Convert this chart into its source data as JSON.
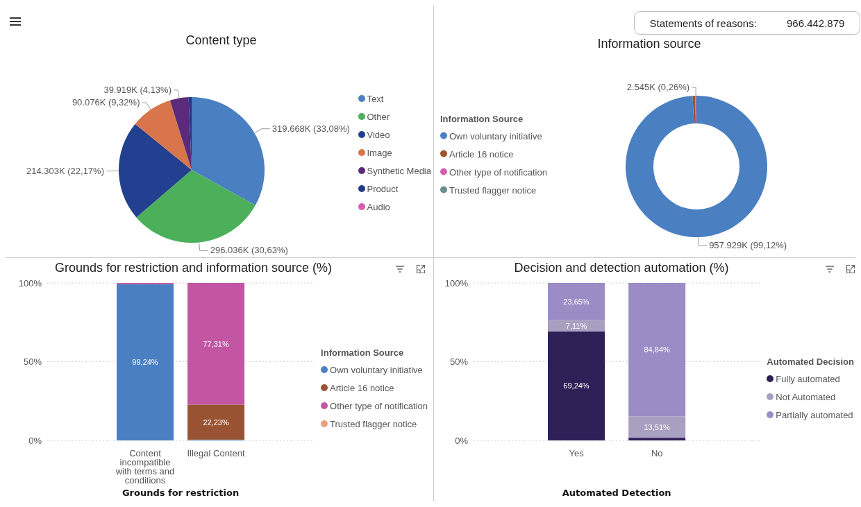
{
  "chart_data": [
    {
      "type": "pie",
      "title": "Content type",
      "categories": [
        "Text",
        "Other",
        "Video",
        "Image",
        "Synthetic Media",
        "Product",
        "Audio"
      ],
      "values": [
        33.08,
        30.63,
        22.17,
        9.32,
        4.13,
        0.67,
        null
      ],
      "colors": [
        "#4a7fc1",
        "#4cb05a",
        "#233f8f",
        "#d9754a",
        "#5b2a7a",
        "#1f3a8a",
        "#d45fae"
      ],
      "value_labels": [
        "319.668K (33,08%)",
        "296.036K (30,63%)",
        "214.303K (22,17%)",
        "90.076K (9,32%)",
        "39.919K (4,13%)",
        null,
        null
      ],
      "legend": "right"
    },
    {
      "type": "other",
      "title": "Statements of reasons:",
      "annotations": [
        "966.442.879"
      ]
    },
    {
      "type": "donut",
      "title": "Information source",
      "legend_title": "Information Source",
      "categories": [
        "Own voluntary initiative",
        "Article 16 notice",
        "Other type of notification",
        "Trusted flagger notice"
      ],
      "values": [
        99.12,
        0.62,
        0.26,
        null
      ],
      "colors": [
        "#4a7fc1",
        "#a0522d",
        "#d060b0",
        "#6b8e8e"
      ],
      "value_labels": [
        "957.929K (99,12%)",
        null,
        "2.545K (0,26%)",
        null
      ],
      "legend": "left"
    },
    {
      "type": "bar",
      "title": "Grounds for restriction and information source (%)",
      "xlabel": "Grounds for restriction",
      "legend_title": "Information Source",
      "categories": [
        "Content incompatible with terms and conditions",
        "Illegal Content"
      ],
      "stacked": true,
      "ylim": [
        0,
        100
      ],
      "yticks": [
        {
          "value": 0,
          "label": "0%"
        },
        {
          "value": 50,
          "label": "50%"
        },
        {
          "value": 100,
          "label": "100%"
        }
      ],
      "grid": "y",
      "legend": "right",
      "series": [
        {
          "name": "Own voluntary initiative",
          "color": "#4a7fc1",
          "values": [
            99.24,
            0.5
          ],
          "value_labels": [
            "99,24%",
            null
          ]
        },
        {
          "name": "Article 16 notice",
          "color": "#9a5332",
          "values": [
            0,
            22.23
          ],
          "value_labels": [
            null,
            "22,23%"
          ]
        },
        {
          "name": "Other type of notification",
          "color": "#c256a3",
          "values": [
            0.8,
            77.31
          ],
          "value_labels": [
            null,
            "77,31%"
          ]
        },
        {
          "name": "Trusted flagger notice",
          "color": "#e8a082",
          "values": [
            0,
            0
          ],
          "value_labels": [
            null,
            null
          ]
        }
      ]
    },
    {
      "type": "bar",
      "title": "Decision and detection automation (%)",
      "xlabel": "Automated Detection",
      "legend_title": "Automated Decision",
      "categories": [
        "Yes",
        "No"
      ],
      "stacked": true,
      "ylim": [
        0,
        100
      ],
      "yticks": [
        {
          "value": 0,
          "label": "0%"
        },
        {
          "value": 50,
          "label": "50%"
        },
        {
          "value": 100,
          "label": "100%"
        }
      ],
      "grid": "y",
      "legend": "right",
      "series": [
        {
          "name": "Fully automated",
          "color": "#2f1f57",
          "values": [
            69.24,
            1.7
          ],
          "value_labels": [
            "69,24%",
            null
          ]
        },
        {
          "name": "Not Automated",
          "color": "#a7a0c0",
          "values": [
            7.11,
            13.51
          ],
          "value_labels": [
            "7,11%",
            "13,51%"
          ]
        },
        {
          "name": "Partially automated",
          "color": "#9b8cc6",
          "values": [
            23.65,
            84.84
          ],
          "value_labels": [
            "23,65%",
            "84,84%"
          ]
        }
      ]
    }
  ]
}
